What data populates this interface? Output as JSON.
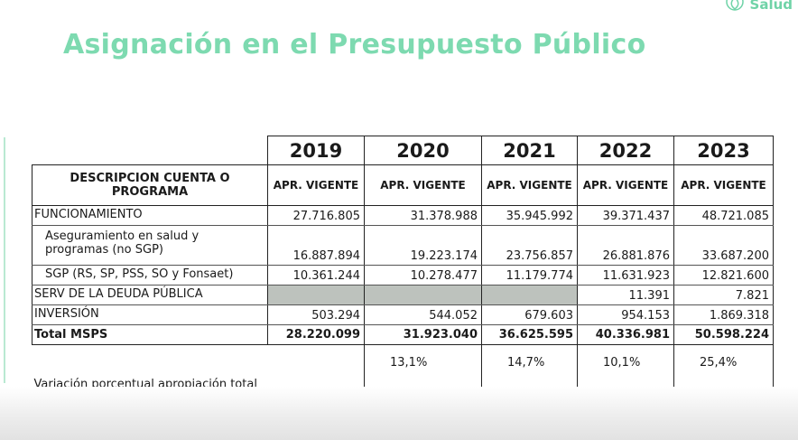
{
  "brand": {
    "name": "Salud",
    "icon": "leaf-icon"
  },
  "title": "Asignación en el Presupuesto Público",
  "years": [
    "2019",
    "2020",
    "2021",
    "2022",
    "2023"
  ],
  "header": {
    "description": "DESCRIPCION CUENTA O PROGRAMA",
    "columns": [
      "APR. VIGENTE",
      "APR. VIGENTE",
      "APR. VIGENTE",
      "APR. VIGENTE",
      "APR. VIGENTE"
    ]
  },
  "rows": [
    {
      "label": "FUNCIONAMIENTO",
      "values": [
        "27.716.805",
        "31.378.988",
        "35.945.992",
        "39.371.437",
        "48.721.085"
      ]
    },
    {
      "label": "Aseguramiento en salud y programas (no SGP)",
      "values": [
        "16.887.894",
        "19.223.174",
        "23.756.857",
        "26.881.876",
        "33.687.200"
      ]
    },
    {
      "label": "SGP  (RS, SP, PSS, SO y Fonsaet)",
      "values": [
        "10.361.244",
        "10.278.477",
        "11.179.774",
        "11.631.923",
        "12.821.600"
      ]
    },
    {
      "label": "SERV DE LA DEUDA PÚBLICA",
      "values": [
        "",
        "",
        "",
        "11.391",
        "7.821"
      ]
    },
    {
      "label": "INVERSIÓN",
      "values": [
        "503.294",
        "544.052",
        "679.603",
        "954.153",
        "1.869.318"
      ]
    }
  ],
  "total": {
    "label": "Total MSPS",
    "values": [
      "28.220.099",
      "31.923.040",
      "36.625.595",
      "40.336.981",
      "50.598.224"
    ]
  },
  "variation": {
    "label": "Variación porcentual apropiación total",
    "values": [
      "13,1%",
      "14,7%",
      "10,1%",
      "25,4%"
    ]
  },
  "colors": {
    "title": "#7ddab0",
    "greyCell": "#bdc2bd"
  }
}
